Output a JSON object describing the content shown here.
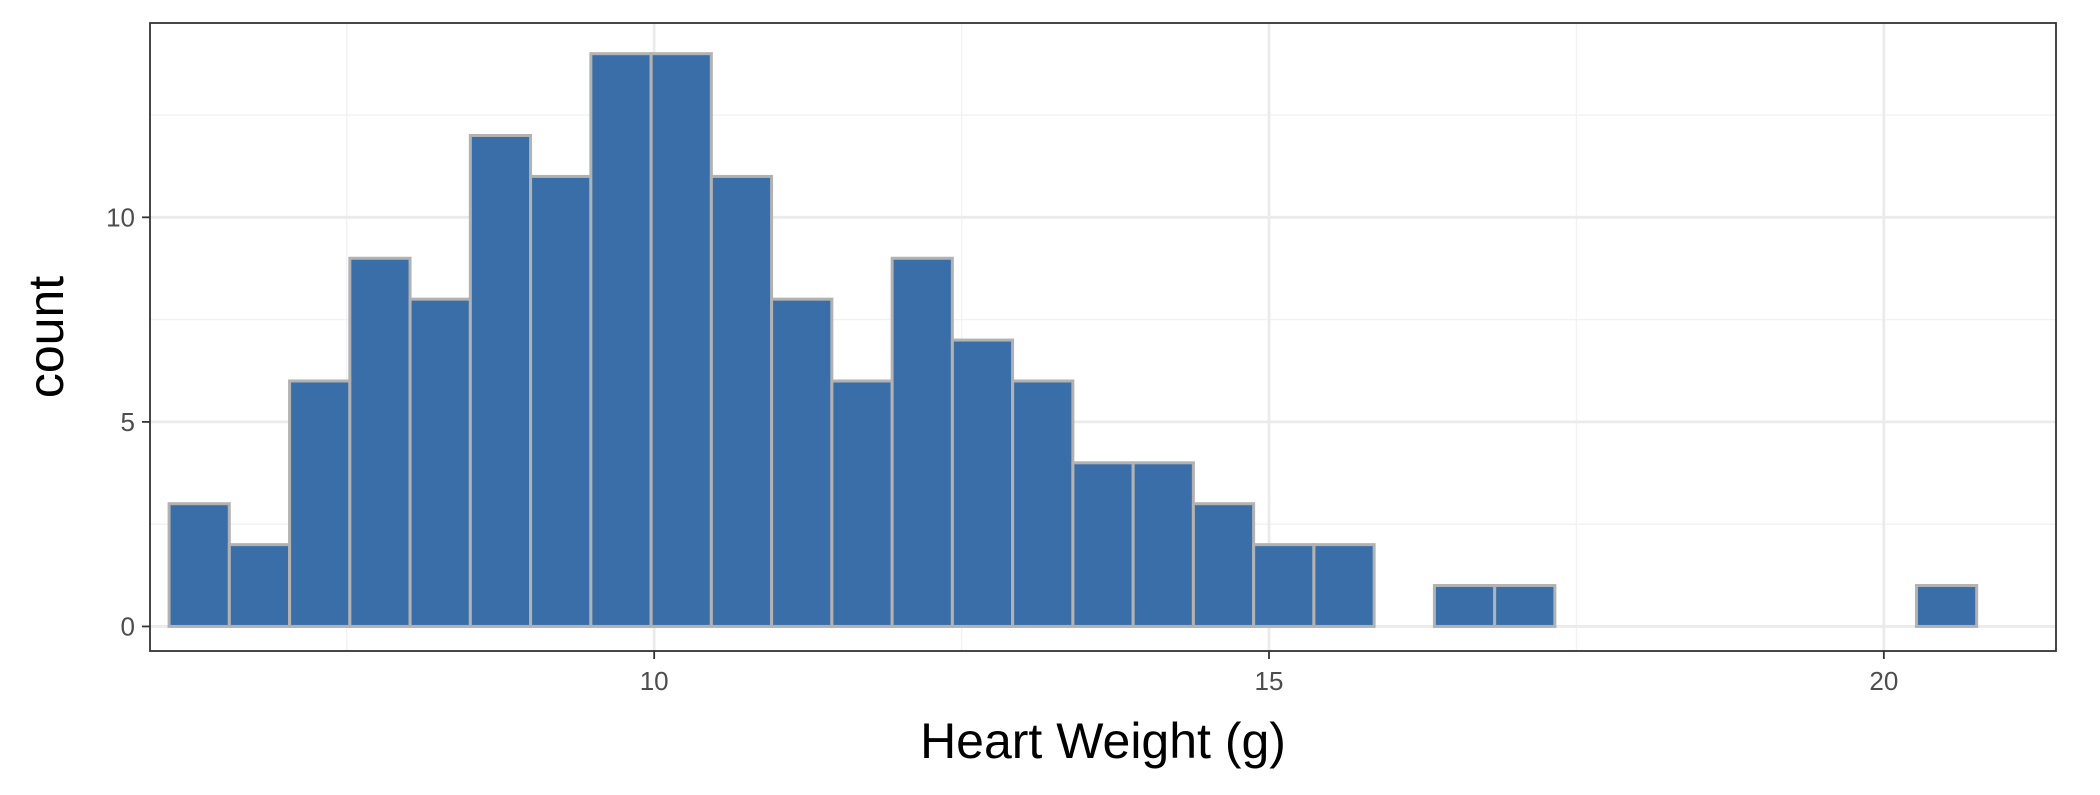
{
  "chart_data": {
    "type": "bar",
    "title": "",
    "xlabel": "Heart Weight (g)",
    "ylabel": "count",
    "xlim": [
      5.9,
      21.4
    ],
    "ylim": [
      -0.6,
      14.75
    ],
    "x_ticks": [
      10,
      15,
      20
    ],
    "x_tick_labels": [
      "10",
      "15",
      "20"
    ],
    "y_ticks": [
      0,
      5,
      10
    ],
    "y_tick_labels": [
      "0",
      "5",
      "10"
    ],
    "bin_width": 0.4897,
    "bin_centers": [
      6.3,
      6.79,
      7.28,
      7.77,
      8.26,
      8.75,
      9.24,
      9.73,
      10.22,
      10.71,
      11.2,
      11.69,
      12.18,
      12.67,
      13.16,
      13.65,
      14.14,
      14.63,
      15.12,
      15.61,
      16.1,
      16.59,
      17.08,
      17.57,
      18.06,
      18.55,
      19.04,
      19.53,
      20.02,
      20.51
    ],
    "values": [
      3,
      2,
      6,
      9,
      8,
      12,
      11,
      14,
      14,
      11,
      8,
      6,
      9,
      7,
      6,
      4,
      4,
      3,
      2,
      2,
      0,
      1,
      1,
      0,
      0,
      0,
      0,
      0,
      0,
      1
    ],
    "grid": true,
    "legend": "none",
    "colors": {
      "bar_fill": "#3A6EA8",
      "bar_stroke": "#B2B2B2",
      "panel_border": "#333333",
      "grid_major": "#EBEBEB",
      "grid_minor": "#F2F2F2"
    }
  }
}
